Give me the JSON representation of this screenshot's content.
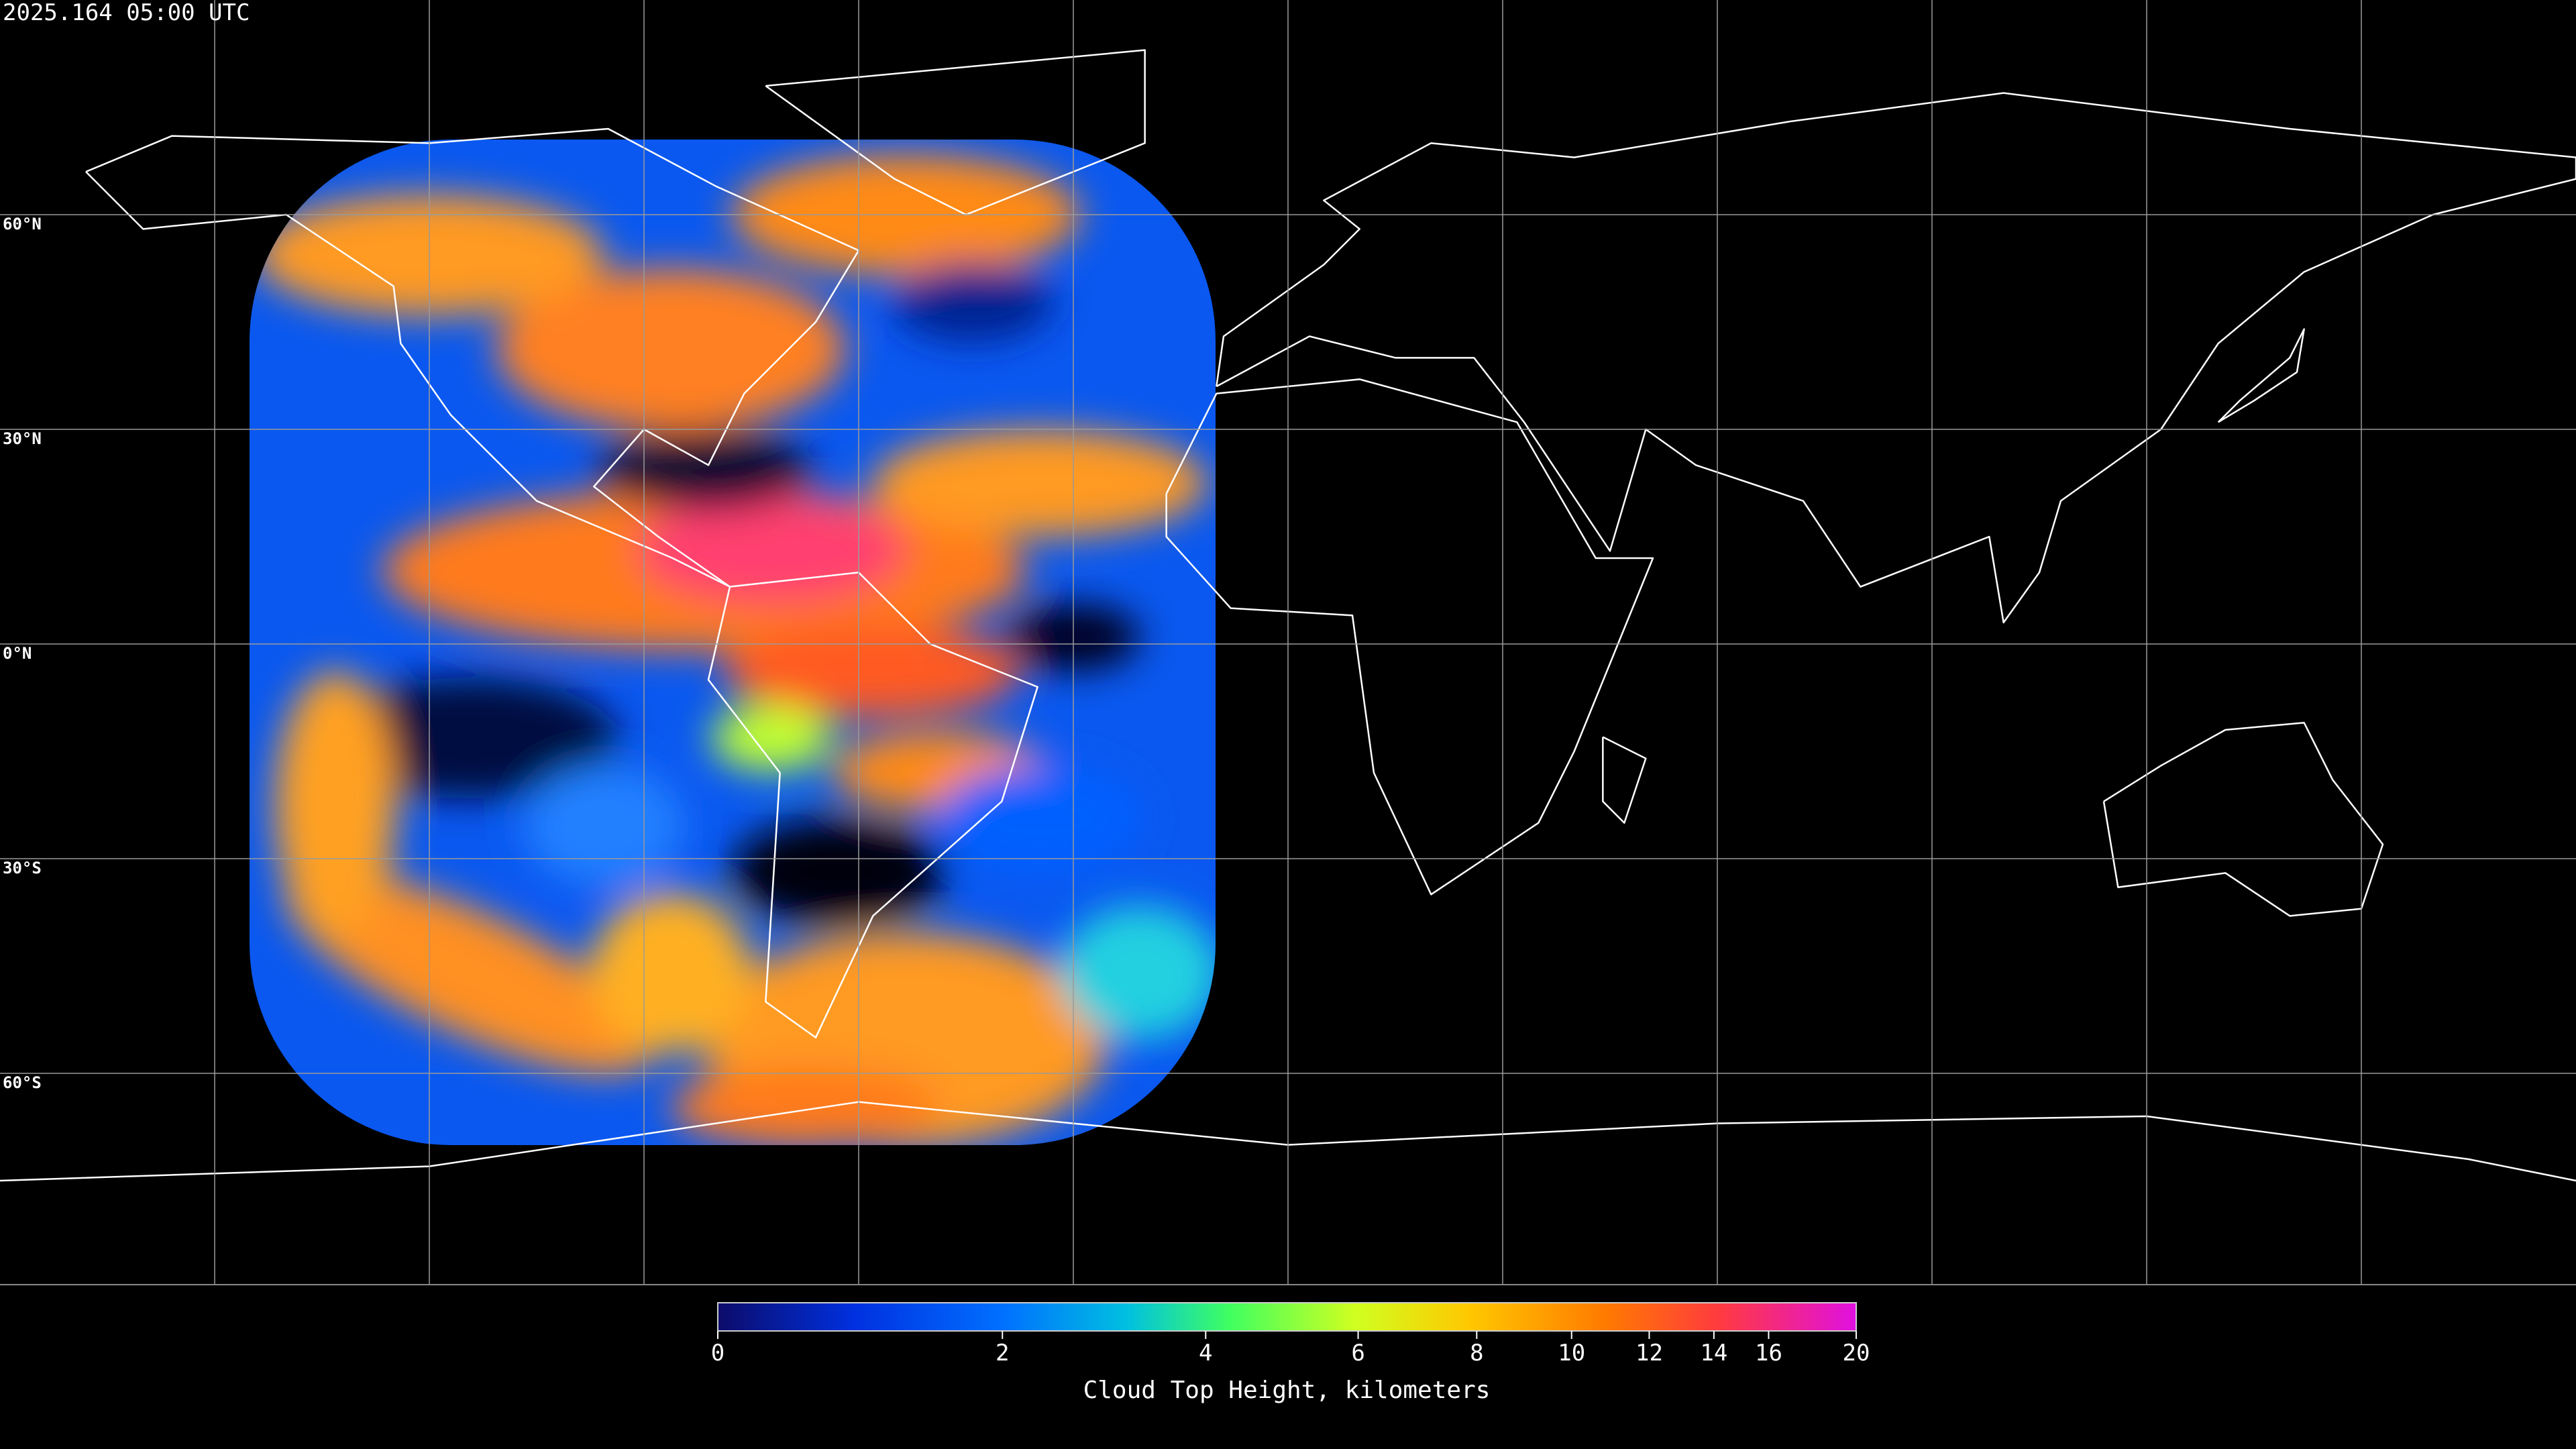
{
  "timestamp": "2025.164 05:00 UTC",
  "map": {
    "latitude_labels": [
      "60°N",
      "30°N",
      "0°N",
      "30°S",
      "60°S"
    ]
  },
  "chart_data": {
    "type": "colorbar",
    "label": "Cloud Top Height, kilometers",
    "xlim": [
      0,
      20
    ],
    "xticks": [
      0,
      2,
      4,
      6,
      8,
      10,
      12,
      14,
      16,
      20
    ]
  }
}
